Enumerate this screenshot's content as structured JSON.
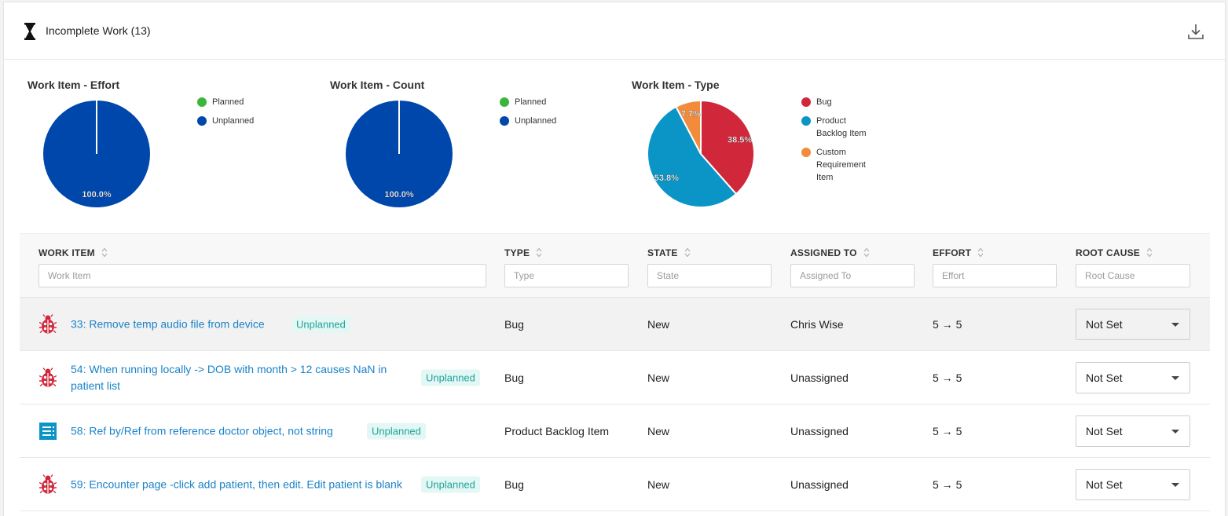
{
  "header": {
    "title": "Incomplete Work (13)",
    "icon": "hourglass-icon",
    "action_icon": "download-icon"
  },
  "colors": {
    "planned": "#3bb53b",
    "unplanned": "#0047ab",
    "bug": "#d0283a",
    "product_backlog_item": "#0a95c6",
    "custom_requirement_item": "#f28c3c",
    "link": "#1a82c8",
    "badge_text": "#21a39a",
    "badge_bg": "#e3f7f4"
  },
  "chart_data": [
    {
      "type": "pie",
      "title": "Work Item - Effort",
      "categories": [
        "Planned",
        "Unplanned"
      ],
      "values": [
        0,
        100.0
      ],
      "labels": [
        "",
        "100.0%"
      ],
      "legend": "right"
    },
    {
      "type": "pie",
      "title": "Work Item - Count",
      "categories": [
        "Planned",
        "Unplanned"
      ],
      "values": [
        0,
        100.0
      ],
      "labels": [
        "",
        "100.0%"
      ],
      "legend": "right"
    },
    {
      "type": "pie",
      "title": "Work Item - Type",
      "categories": [
        "Bug",
        "Product\nBacklog Item",
        "Custom\nRequirement\nItem"
      ],
      "values": [
        38.5,
        53.8,
        7.7
      ],
      "labels": [
        "38.5%",
        "53.8%",
        "7.7%"
      ],
      "legend": "right"
    }
  ],
  "table": {
    "columns": {
      "work_item": "WORK ITEM",
      "type": "TYPE",
      "state": "STATE",
      "assigned_to": "ASSIGNED TO",
      "effort": "EFFORT",
      "root_cause": "ROOT CAUSE"
    },
    "filters": {
      "work_item": "Work Item",
      "type": "Type",
      "state": "State",
      "assigned_to": "Assigned To",
      "effort": "Effort",
      "root_cause": "Root Cause"
    },
    "rows": [
      {
        "icon": "bug-icon",
        "title": "33: Remove temp audio file from device",
        "badge": "Unplanned",
        "type": "Bug",
        "state": "New",
        "assigned_to": "Chris Wise",
        "effort": "5 → 5",
        "root_cause": "Not Set"
      },
      {
        "icon": "bug-icon",
        "title": "54: When running locally -> DOB with month > 12 causes NaN in patient list",
        "badge": "Unplanned",
        "type": "Bug",
        "state": "New",
        "assigned_to": "Unassigned",
        "effort": "5 → 5",
        "root_cause": "Not Set"
      },
      {
        "icon": "backlog-item-icon",
        "title": "58: Ref by/Ref from reference doctor object, not string",
        "badge": "Unplanned",
        "type": "Product Backlog Item",
        "state": "New",
        "assigned_to": "Unassigned",
        "effort": "5 → 5",
        "root_cause": "Not Set"
      },
      {
        "icon": "bug-icon",
        "title": "59: Encounter page -click add patient, then edit. Edit patient is blank",
        "badge": "Unplanned",
        "type": "Bug",
        "state": "New",
        "assigned_to": "Unassigned",
        "effort": "5 → 5",
        "root_cause": "Not Set"
      }
    ]
  }
}
